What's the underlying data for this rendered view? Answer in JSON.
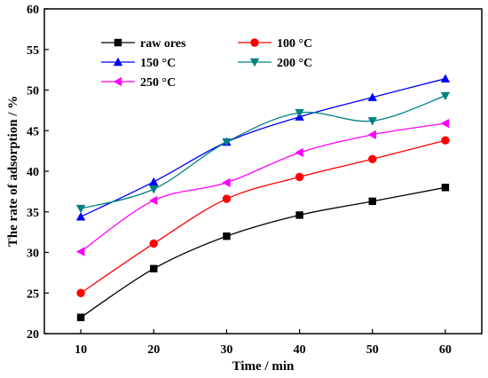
{
  "chart_data": {
    "type": "line",
    "xlabel": "Time / min",
    "ylabel": "The  rate of adsorption / %",
    "xlim": [
      5,
      65
    ],
    "ylim": [
      20,
      60
    ],
    "xticks": [
      10,
      20,
      30,
      40,
      50,
      60
    ],
    "yticks": [
      20,
      25,
      30,
      35,
      40,
      45,
      50,
      55,
      60
    ],
    "x": [
      10,
      20,
      30,
      40,
      50,
      60
    ],
    "grid": false,
    "legend_position": "top-left",
    "series": [
      {
        "name": "raw ores",
        "marker": "square",
        "color": "#000000",
        "values": [
          22.0,
          28.0,
          32.0,
          34.6,
          36.3,
          38.0
        ]
      },
      {
        "name": "100 °C",
        "marker": "circle",
        "color": "#ff0000",
        "values": [
          25.0,
          31.1,
          36.6,
          39.3,
          41.5,
          43.8
        ]
      },
      {
        "name": "150 °C",
        "marker": "triangle-up",
        "color": "#0000ff",
        "values": [
          34.4,
          38.7,
          43.6,
          46.7,
          49.1,
          51.4
        ]
      },
      {
        "name": "200 °C",
        "marker": "triangle-down",
        "color": "#008080",
        "values": [
          35.4,
          37.8,
          43.6,
          47.2,
          46.2,
          49.3
        ]
      },
      {
        "name": "250 °C",
        "marker": "triangle-left",
        "color": "#ff00ff",
        "values": [
          30.1,
          36.4,
          38.6,
          42.3,
          44.5,
          45.9
        ]
      }
    ]
  }
}
